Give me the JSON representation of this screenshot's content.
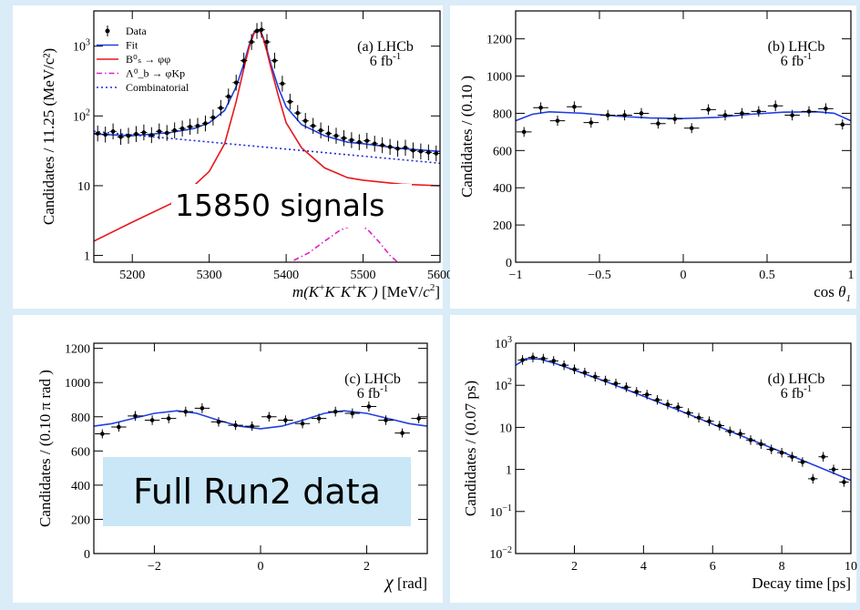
{
  "colors": {
    "background": "#d9ecf8",
    "fit": "#1f3fe0",
    "signal": "#e8171b",
    "lambda_b": "#e020c8",
    "combinatorial": "#1e28d8",
    "data": "#000000",
    "overlay_signals_bg": "#ffffff",
    "overlay_run2_bg": "#c9e7f6"
  },
  "overlays": {
    "signals": "15850 signals",
    "run2": "Full Run2 data"
  },
  "chart_data": [
    {
      "id": "a",
      "type": "scatter",
      "tag": "(a) LHCb",
      "lumi": "6 fb",
      "lumi_sup": "-1",
      "xlabel_parts": [
        "m(",
        "K",
        "+",
        "K",
        "-",
        "K",
        "+",
        "K",
        "-",
        ")",
        " [MeV/",
        "c",
        "2",
        "]"
      ],
      "ylabel": "Candidates / 11.25 (MeV/c²)",
      "xlim": [
        5150,
        5600
      ],
      "ylim": [
        0.8,
        3200
      ],
      "yscale": "log",
      "xticks": [
        5200,
        5300,
        5400,
        5500,
        5600
      ],
      "yticks": [
        {
          "v": 1,
          "base": "1",
          "exp": ""
        },
        {
          "v": 10,
          "base": "10",
          "exp": ""
        },
        {
          "v": 100,
          "base": "10",
          "exp": "2"
        },
        {
          "v": 1000,
          "base": "10",
          "exp": "3"
        }
      ],
      "legend": [
        "Data",
        "Fit",
        "B⁰ₛ → φφ",
        "Λ⁰_b → φKp",
        "Combinatorial"
      ],
      "legend_position": "top-left",
      "series": [
        {
          "name": "Fit",
          "kind": "line",
          "x": [
            5150,
            5200,
            5250,
            5280,
            5300,
            5320,
            5335,
            5345,
            5352,
            5358,
            5362,
            5366,
            5370,
            5375,
            5380,
            5390,
            5400,
            5420,
            5450,
            5480,
            5500,
            5550,
            5600
          ],
          "y": [
            55,
            52,
            58,
            66,
            80,
            120,
            260,
            560,
            1050,
            1550,
            1750,
            1700,
            1350,
            900,
            560,
            250,
            135,
            75,
            52,
            42,
            40,
            34,
            31
          ]
        },
        {
          "name": "B⁰ₛ → φφ",
          "kind": "line",
          "x": [
            5150,
            5200,
            5250,
            5280,
            5300,
            5320,
            5335,
            5345,
            5352,
            5358,
            5362,
            5366,
            5370,
            5375,
            5380,
            5390,
            5400,
            5420,
            5450,
            5480,
            5500,
            5550,
            5600
          ],
          "y": [
            1.6,
            3,
            5.5,
            10,
            16,
            40,
            160,
            480,
            980,
            1490,
            1700,
            1650,
            1300,
            840,
            500,
            190,
            80,
            35,
            18,
            13,
            12,
            10.5,
            10
          ]
        },
        {
          "name": "Λ⁰_b → φKp",
          "kind": "line",
          "x": [
            5410,
            5430,
            5450,
            5470,
            5490,
            5505,
            5520,
            5535,
            5545
          ],
          "y": [
            0.85,
            1.1,
            1.6,
            2.3,
            2.8,
            2.4,
            1.6,
            1.0,
            0.8
          ]
        },
        {
          "name": "Combinatorial",
          "kind": "line",
          "x": [
            5150,
            5600
          ],
          "y": [
            60,
            21
          ]
        },
        {
          "name": "Data",
          "kind": "points",
          "x": [
            5155,
            5165,
            5175,
            5185,
            5195,
            5205,
            5215,
            5225,
            5235,
            5245,
            5255,
            5265,
            5275,
            5285,
            5295,
            5305,
            5315,
            5325,
            5335,
            5345,
            5355,
            5362,
            5368,
            5375,
            5385,
            5395,
            5405,
            5415,
            5425,
            5435,
            5445,
            5455,
            5465,
            5475,
            5485,
            5495,
            5505,
            5515,
            5525,
            5535,
            5545,
            5555,
            5565,
            5575,
            5585,
            5595
          ],
          "y": [
            56,
            54,
            60,
            50,
            52,
            55,
            58,
            53,
            60,
            57,
            62,
            66,
            70,
            72,
            78,
            95,
            130,
            190,
            300,
            620,
            1150,
            1650,
            1720,
            1150,
            620,
            290,
            160,
            110,
            85,
            72,
            62,
            56,
            52,
            48,
            45,
            42,
            44,
            40,
            38,
            36,
            34,
            35,
            32,
            31,
            30,
            29
          ]
        }
      ]
    },
    {
      "id": "b",
      "type": "scatter",
      "tag": "(b) LHCb",
      "lumi": "6 fb",
      "lumi_sup": "-1",
      "xlabel_parts": [
        "cos ",
        "θ",
        "1"
      ],
      "ylabel": "Candidates / (0.10 )",
      "xlim": [
        -1,
        1
      ],
      "ylim": [
        0,
        1350
      ],
      "yscale": "linear",
      "xticks": [
        -1,
        -0.5,
        0,
        0.5,
        1
      ],
      "yticks": [
        0,
        200,
        400,
        600,
        800,
        1000,
        1200
      ],
      "series": [
        {
          "name": "Fit",
          "kind": "line",
          "x": [
            -1,
            -0.9,
            -0.8,
            -0.6,
            -0.4,
            -0.2,
            0,
            0.2,
            0.4,
            0.6,
            0.8,
            0.9,
            1
          ],
          "y": [
            760,
            795,
            808,
            800,
            785,
            775,
            772,
            778,
            795,
            806,
            808,
            800,
            760
          ]
        },
        {
          "name": "Data",
          "kind": "points",
          "x": [
            -0.95,
            -0.85,
            -0.75,
            -0.65,
            -0.55,
            -0.45,
            -0.35,
            -0.25,
            -0.15,
            -0.05,
            0.05,
            0.15,
            0.25,
            0.35,
            0.45,
            0.55,
            0.65,
            0.75,
            0.85,
            0.95
          ],
          "y": [
            700,
            830,
            760,
            835,
            750,
            790,
            790,
            800,
            745,
            770,
            720,
            820,
            790,
            800,
            810,
            840,
            790,
            810,
            825,
            740
          ]
        }
      ]
    },
    {
      "id": "c",
      "type": "scatter",
      "tag": "(c) LHCb",
      "lumi": "6 fb",
      "lumi_sup": "-1",
      "xlabel_parts": [
        "χ",
        " [rad]"
      ],
      "ylabel": "Candidates / (0.10 π rad )",
      "xlim": [
        -3.14,
        3.14
      ],
      "ylim": [
        0,
        1230
      ],
      "yscale": "linear",
      "xticks": [
        -2,
        0,
        2
      ],
      "yticks": [
        0,
        200,
        400,
        600,
        800,
        1000,
        1200
      ],
      "series": [
        {
          "name": "Fit",
          "kind": "line",
          "x": [
            -3.14,
            -2.8,
            -2.4,
            -2,
            -1.57,
            -1.2,
            -0.8,
            -0.4,
            0,
            0.4,
            0.8,
            1.2,
            1.57,
            2,
            2.4,
            2.8,
            3.14
          ],
          "y": [
            745,
            760,
            790,
            820,
            835,
            820,
            780,
            745,
            730,
            745,
            780,
            820,
            835,
            820,
            790,
            760,
            745
          ]
        },
        {
          "name": "Data",
          "kind": "points",
          "x": [
            -2.98,
            -2.67,
            -2.36,
            -2.04,
            -1.73,
            -1.41,
            -1.1,
            -0.79,
            -0.47,
            -0.16,
            0.16,
            0.47,
            0.79,
            1.1,
            1.41,
            1.73,
            2.04,
            2.36,
            2.67,
            2.98
          ],
          "y": [
            700,
            740,
            805,
            780,
            790,
            830,
            850,
            770,
            750,
            745,
            800,
            780,
            760,
            790,
            830,
            820,
            860,
            780,
            705,
            790
          ]
        }
      ]
    },
    {
      "id": "d",
      "type": "scatter",
      "tag": "(d) LHCb",
      "lumi": "6 fb",
      "lumi_sup": "-1",
      "xlabel_parts": [
        "Decay time [ps]"
      ],
      "ylabel": "Candidates / (0.07 ps)",
      "xlim": [
        0.3,
        10
      ],
      "ylim": [
        0.01,
        1000
      ],
      "yscale": "log",
      "xticks": [
        2,
        4,
        6,
        8,
        10
      ],
      "yticks": [
        {
          "v": 0.01,
          "base": "10",
          "exp": "−2"
        },
        {
          "v": 0.1,
          "base": "10",
          "exp": "−1"
        },
        {
          "v": 1,
          "base": "1",
          "exp": ""
        },
        {
          "v": 10,
          "base": "10",
          "exp": ""
        },
        {
          "v": 100,
          "base": "10",
          "exp": "2"
        },
        {
          "v": 1000,
          "base": "10",
          "exp": "3"
        }
      ],
      "series": [
        {
          "name": "Fit",
          "kind": "line",
          "x": [
            0.3,
            0.6,
            1,
            1.5,
            2,
            3,
            4,
            5,
            6,
            7,
            8,
            9,
            10
          ],
          "y": [
            300,
            430,
            420,
            320,
            230,
            115,
            55,
            26,
            12,
            5.5,
            2.6,
            1.2,
            0.55
          ]
        },
        {
          "name": "Data",
          "kind": "points",
          "x": [
            0.5,
            0.8,
            1.1,
            1.4,
            1.7,
            2,
            2.3,
            2.6,
            2.9,
            3.2,
            3.5,
            3.8,
            4.1,
            4.4,
            4.7,
            5,
            5.3,
            5.6,
            5.9,
            6.2,
            6.5,
            6.8,
            7.1,
            7.4,
            7.7,
            8,
            8.3,
            8.6,
            8.9,
            9.2,
            9.5,
            9.8
          ],
          "y": [
            400,
            460,
            430,
            380,
            300,
            240,
            200,
            160,
            130,
            110,
            90,
            70,
            60,
            45,
            35,
            30,
            22,
            17,
            14,
            11,
            8,
            7,
            5,
            4,
            3,
            2.5,
            2,
            1.5,
            0.6,
            2,
            1,
            0.5
          ]
        }
      ]
    }
  ]
}
